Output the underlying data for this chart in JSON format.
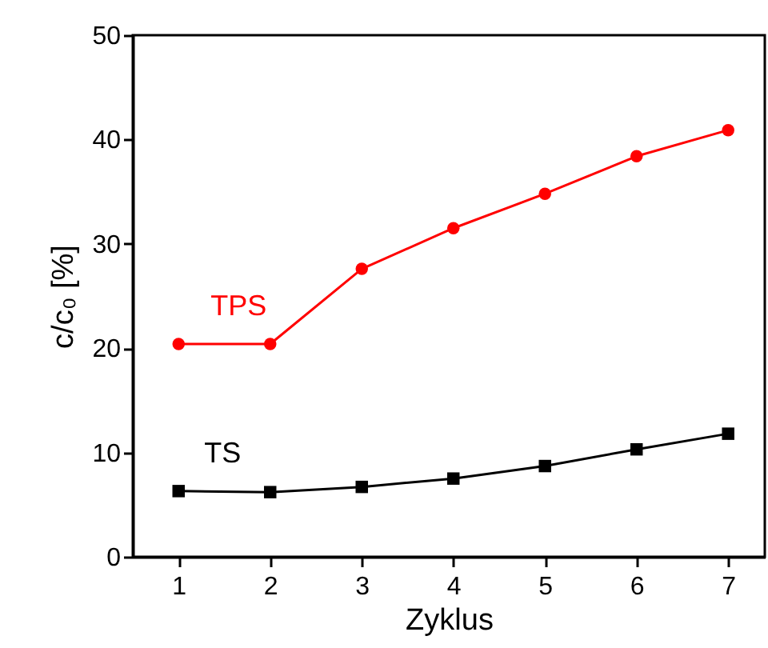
{
  "chart_data": {
    "type": "line",
    "xlabel": "Zyklus",
    "ylabel": "c/c₀ [%]",
    "x": [
      1,
      2,
      3,
      4,
      5,
      6,
      7
    ],
    "series": [
      {
        "name": "TPS",
        "color": "#ff0000",
        "marker": "circle",
        "values": [
          20.4,
          20.4,
          27.6,
          31.5,
          34.8,
          38.4,
          40.9
        ]
      },
      {
        "name": "TS",
        "color": "#000000",
        "marker": "square",
        "values": [
          6.3,
          6.2,
          6.7,
          7.5,
          8.7,
          10.3,
          11.8
        ]
      }
    ],
    "xlim": [
      0.5,
      7.4
    ],
    "xticks": [
      1,
      2,
      3,
      4,
      5,
      6,
      7
    ],
    "ylim": [
      0,
      50
    ],
    "yticks": [
      0,
      10,
      20,
      30,
      40,
      50
    ],
    "grid": false,
    "line_style": "solid"
  }
}
